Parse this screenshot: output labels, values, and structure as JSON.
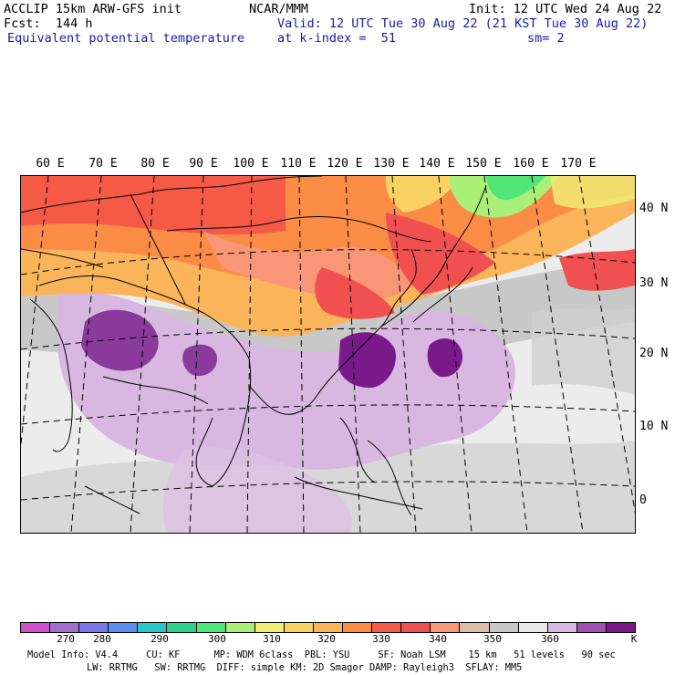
{
  "header": {
    "model_title": "ACCLIP 15km ARW-GFS init",
    "org": "NCAR/MMM",
    "init": "Init: 12 UTC Wed 24 Aug 22",
    "fcst": "Fcst:  144 h",
    "valid": "Valid: 12 UTC Tue 30 Aug 22 (21 KST Tue 30 Aug 22)",
    "field_name": "Equivalent potential temperature",
    "k_index": "at k-index =  51",
    "smoothing": "sm= 2"
  },
  "map": {
    "longitude_labels": [
      "60 E",
      "70 E",
      "80 E",
      "90 E",
      "100 E",
      "110 E",
      "120 E",
      "130 E",
      "140 E",
      "150 E",
      "160 E",
      "170 E"
    ],
    "latitude_labels": [
      "40 N",
      "30 N",
      "20 N",
      "10 N",
      "0"
    ]
  },
  "colorbar": {
    "colors": [
      "#d050d0",
      "#a070d0",
      "#7878e8",
      "#5a8ef0",
      "#28c8c8",
      "#28d28c",
      "#50e678",
      "#aaf078",
      "#f0f078",
      "#fad264",
      "#fab45a",
      "#fa8c46",
      "#f55a46",
      "#f05050",
      "#fa9678",
      "#dcbeaa",
      "#c8c8c8",
      "#e8e8e8",
      "#d8b8e0",
      "#a050b0",
      "#7a1a8a"
    ],
    "labels": [
      "270",
      "280",
      "290",
      "300",
      "310",
      "320",
      "330",
      "340",
      "350",
      "360"
    ],
    "unit": "K"
  },
  "footer": {
    "line1": "Model Info: V4.4     CU: KF      MP: WDM 6class  PBL: YSU     SF: Noah LSM    15 km   51 levels   90 sec",
    "line2": "LW: RRTMG   SW: RRTMG  DIFF: simple KM: 2D Smagor DAMP: Rayleigh3  SFLAY: MM5"
  }
}
